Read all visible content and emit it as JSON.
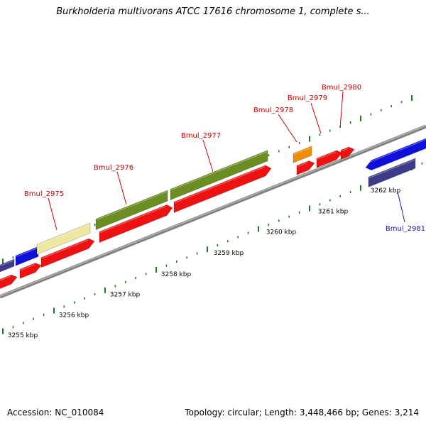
{
  "header": {
    "title": "Burkholderia multivorans ATCC 17616 chromosome 1, complete s..."
  },
  "footer": {
    "accession": "Accession: NC_010084",
    "summary": "Topology: circular; Length: 3,448,466 bp; Genes: 3,214"
  },
  "colors": {
    "backbone": "#808080",
    "tick": "#1b7a1b",
    "forward_gene_label": "#cc0000",
    "reverse_gene_label": "#1a1aaa",
    "cds": "#ee1111",
    "blue_gene": "#1010dd",
    "slate_gene": "#3e3a8a",
    "olive_gene": "#6b8e23",
    "pale_gene": "#eee8a0",
    "orange_gene": "#f08c00"
  },
  "scale": {
    "labels": [
      "3255 kbp",
      "3256 kbp",
      "3257 kbp",
      "3258 kbp",
      "3259 kbp",
      "3260 kbp",
      "3261 kbp",
      "3262 kbp"
    ]
  },
  "genes": {
    "forward_labels": [
      "Bmul_2975",
      "Bmul_2976",
      "Bmul_2977",
      "Bmul_2978",
      "Bmul_2979",
      "Bmul_2980"
    ],
    "reverse_labels": [
      "Bmul_2981"
    ]
  }
}
